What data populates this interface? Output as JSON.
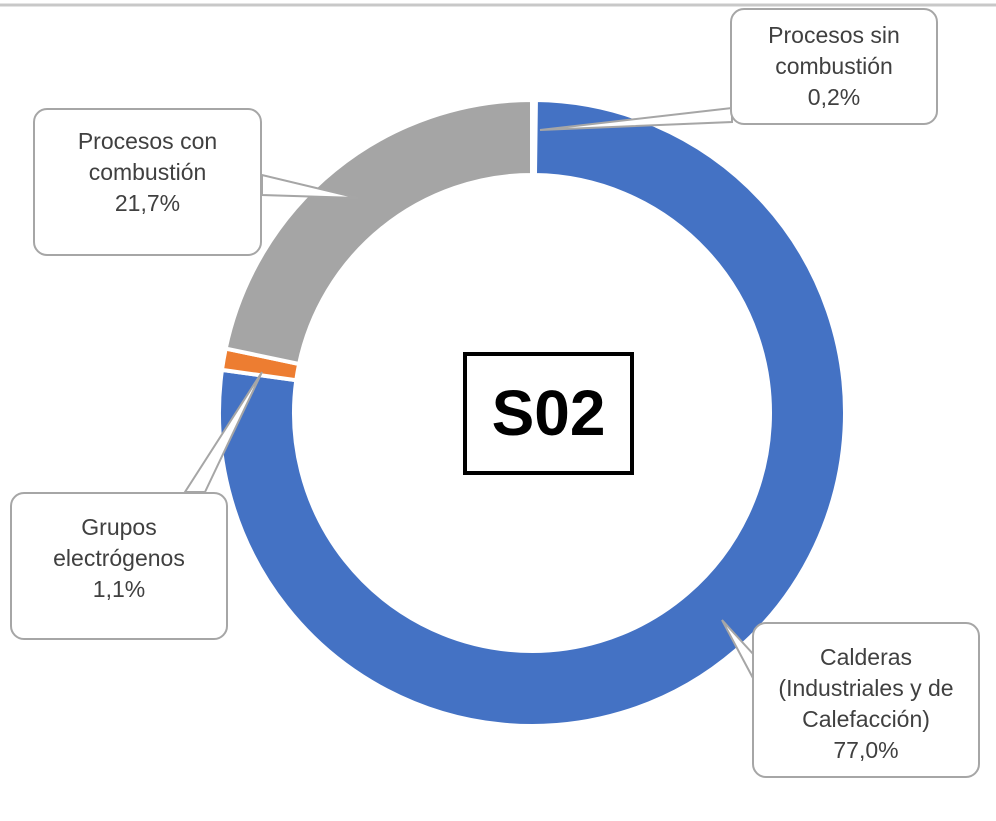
{
  "chart_data": {
    "type": "donut",
    "center_label": "S02",
    "categories": [
      "Procesos sin combustión",
      "Calderas (Industriales y de Calefacción)",
      "Grupos electrógenos",
      "Procesos con combustión"
    ],
    "values": [
      0.2,
      77.0,
      1.1,
      21.7
    ],
    "value_labels": [
      "0,2%",
      "77,0%",
      "1,1%",
      "21,7%"
    ],
    "colors": [
      "#4472c4",
      "#4472c4",
      "#ed7d31",
      "#a5a5a5"
    ]
  }
}
